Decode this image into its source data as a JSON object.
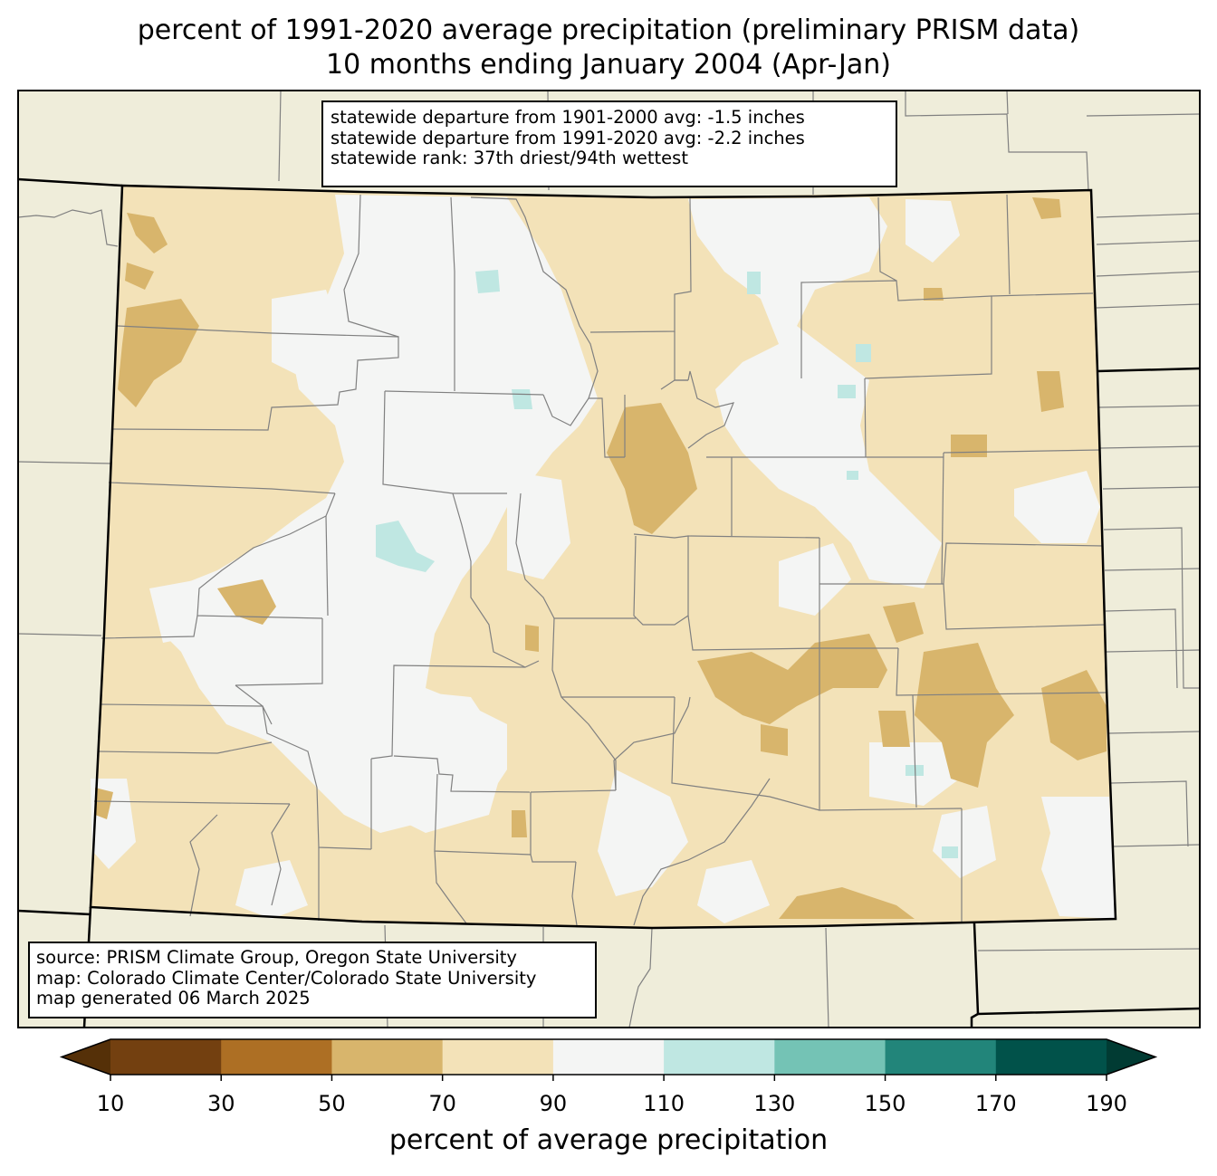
{
  "title_line1": "percent of 1991-2020 average precipitation (preliminary PRISM data)",
  "title_line2": "10 months ending January 2004 (Apr-Jan)",
  "stats": {
    "line1": "statewide departure from 1901-2000 avg: -1.5 inches",
    "line2": "statewide departure from 1991-2020 avg: -2.2 inches",
    "line3": "statewide rank: 37th driest/94th wettest"
  },
  "source": {
    "line1": "source: PRISM Climate Group, Oregon State University",
    "line2": "map: Colorado Climate Center/Colorado State University",
    "line3": "map generated 06 March 2025"
  },
  "colorbar": {
    "label": "percent of average precipitation",
    "ticks": [
      "10",
      "30",
      "50",
      "70",
      "90",
      "110",
      "130",
      "150",
      "170",
      "190"
    ],
    "colors": [
      "#734010",
      "#ad6f24",
      "#d8b56c",
      "#f3e2b8",
      "#f4f5f4",
      "#bfe7e2",
      "#74c3b5",
      "#22857a",
      "#01524a"
    ],
    "under_color": "#553008",
    "over_color": "#013b33"
  },
  "map_colors": {
    "background": "#efedda",
    "band_70_90": "#f3e2b8",
    "band_90_110": "#f4f5f4",
    "band_50_70": "#d8b56c",
    "band_110_130": "#bfe7e2",
    "county_lines": "#808080",
    "state_lines": "#000000"
  }
}
